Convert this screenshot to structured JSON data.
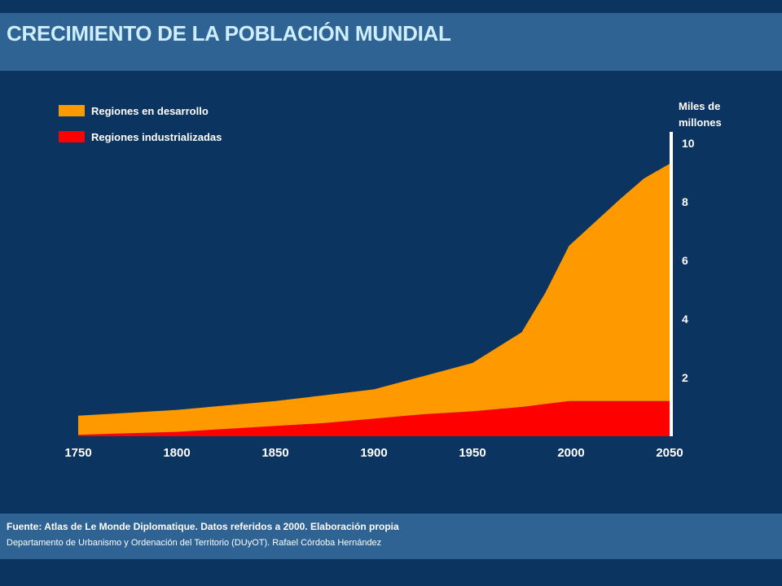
{
  "header": {
    "title": "CRECIMIENTO DE LA POBLACIÓN MUNDIAL"
  },
  "colors": {
    "developing": "#ff9900",
    "industrialized": "#ff0000",
    "axis": "#ffffff"
  },
  "chart_data": {
    "type": "area",
    "stacked": true,
    "ylabel": "Miles de millones",
    "xlim": [
      1750,
      2050
    ],
    "ylim": [
      0,
      10
    ],
    "x_ticks": [
      1750,
      1800,
      1850,
      1900,
      1950,
      2000,
      2050
    ],
    "y_ticks": [
      2,
      4,
      6,
      8,
      10
    ],
    "y_axis_position": "right",
    "legend_position": "top-left",
    "grid": false,
    "x": [
      1750,
      1800,
      1850,
      1875,
      1900,
      1925,
      1950,
      1975,
      1987,
      1999,
      2025,
      2037,
      2050
    ],
    "series": [
      {
        "name": "Regiones industrializadas",
        "color": "#ff0000",
        "values": [
          0.05,
          0.15,
          0.35,
          0.45,
          0.6,
          0.75,
          0.85,
          1.0,
          1.1,
          1.2,
          1.2,
          1.2,
          1.2
        ]
      },
      {
        "name": "Regiones en desarrollo",
        "color": "#ff9900",
        "values": [
          0.65,
          0.75,
          0.85,
          0.95,
          1.0,
          1.3,
          1.65,
          2.55,
          3.8,
          5.3,
          6.9,
          7.6,
          8.1
        ]
      }
    ]
  },
  "footer": {
    "source": "Fuente: Atlas de Le Monde Diplomatique. Datos referidos a 2000. Elaboración propia",
    "credit": "Departamento de Urbanismo y Ordenación del Territorio (DUyOT). Rafael Córdoba Hernández"
  }
}
